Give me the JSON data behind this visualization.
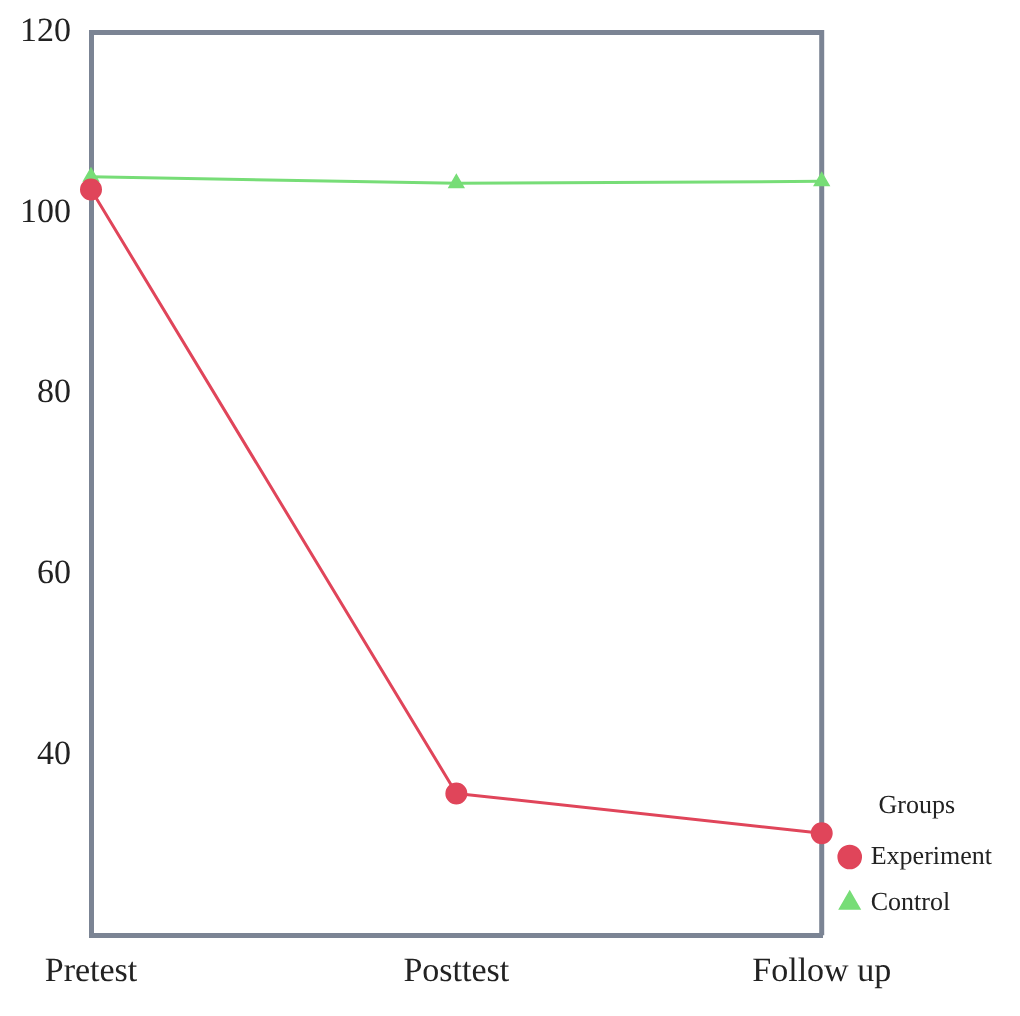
{
  "chart_data": {
    "type": "line",
    "categories": [
      "Pretest",
      "Posttest",
      "Follow up"
    ],
    "series": [
      {
        "name": "Experiment",
        "color": "#e0455a",
        "marker": "circle",
        "values": [
          102.6,
          35.7,
          31.3
        ]
      },
      {
        "name": "Control",
        "color": "#77dd77",
        "marker": "triangle",
        "values": [
          104,
          103.3,
          103.5
        ]
      }
    ],
    "ylim": [
      20,
      120
    ],
    "yticks": [
      40,
      60,
      80,
      100,
      120
    ],
    "grid": false,
    "legend": "bottom right",
    "legend_title": "Groups"
  }
}
